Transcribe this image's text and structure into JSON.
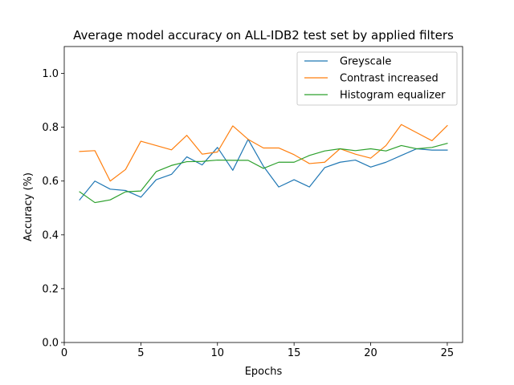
{
  "chart_data": {
    "type": "line",
    "title": "Average model accuracy on ALL-IDB2 test set by applied filters",
    "xlabel": "Epochs",
    "ylabel": "Accuracy (%)",
    "xlim": [
      0,
      26
    ],
    "ylim": [
      0,
      1.1
    ],
    "xticks": [
      0,
      5,
      10,
      15,
      20,
      25
    ],
    "yticks": [
      0.0,
      0.2,
      0.4,
      0.6,
      0.8,
      1.0
    ],
    "xtick_labels": [
      "0",
      "5",
      "10",
      "15",
      "20",
      "25"
    ],
    "ytick_labels": [
      "0.0",
      "0.2",
      "0.4",
      "0.6",
      "0.8",
      "1.0"
    ],
    "grid": false,
    "legend_position": "top-right",
    "x": [
      1,
      2,
      3,
      4,
      5,
      6,
      7,
      8,
      9,
      10,
      11,
      12,
      13,
      14,
      15,
      16,
      17,
      18,
      19,
      20,
      21,
      22,
      23,
      24,
      25
    ],
    "series": [
      {
        "name": "Greyscale",
        "color": "#1f77b4",
        "values": [
          0.53,
          0.6,
          0.57,
          0.565,
          0.54,
          0.605,
          0.625,
          0.69,
          0.66,
          0.725,
          0.64,
          0.755,
          0.655,
          0.578,
          0.605,
          0.578,
          0.65,
          0.67,
          0.678,
          0.652,
          0.67,
          0.695,
          0.72,
          0.715,
          0.715
        ]
      },
      {
        "name": "Contrast increased",
        "color": "#ff7f0e",
        "values": [
          0.71,
          0.713,
          0.6,
          0.643,
          0.748,
          0.732,
          0.716,
          0.77,
          0.7,
          0.708,
          0.805,
          0.755,
          0.723,
          0.723,
          0.698,
          0.665,
          0.67,
          0.72,
          0.7,
          0.685,
          0.732,
          0.81,
          0.78,
          0.75,
          0.806
        ]
      },
      {
        "name": "Histogram equalizer",
        "color": "#2ca02c",
        "values": [
          0.56,
          0.52,
          0.53,
          0.56,
          0.563,
          0.635,
          0.658,
          0.672,
          0.673,
          0.678,
          0.677,
          0.677,
          0.647,
          0.67,
          0.67,
          0.695,
          0.712,
          0.72,
          0.713,
          0.72,
          0.712,
          0.732,
          0.72,
          0.725,
          0.74
        ]
      }
    ]
  }
}
